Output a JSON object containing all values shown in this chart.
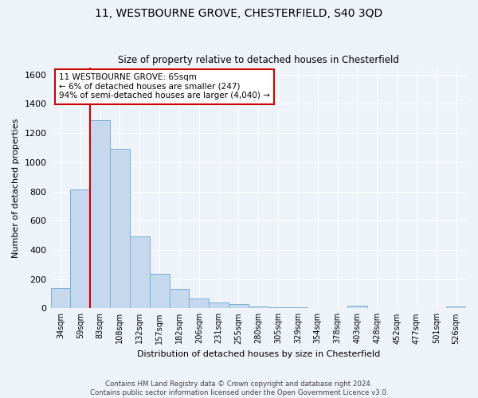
{
  "title1": "11, WESTBOURNE GROVE, CHESTERFIELD, S40 3QD",
  "title2": "Size of property relative to detached houses in Chesterfield",
  "xlabel": "Distribution of detached houses by size in Chesterfield",
  "ylabel": "Number of detached properties",
  "categories": [
    "34sqm",
    "59sqm",
    "83sqm",
    "108sqm",
    "132sqm",
    "157sqm",
    "182sqm",
    "206sqm",
    "231sqm",
    "255sqm",
    "280sqm",
    "305sqm",
    "329sqm",
    "354sqm",
    "378sqm",
    "403sqm",
    "428sqm",
    "452sqm",
    "477sqm",
    "501sqm",
    "526sqm"
  ],
  "values": [
    140,
    815,
    1290,
    1090,
    490,
    235,
    130,
    68,
    40,
    28,
    15,
    8,
    5,
    3,
    2,
    18,
    2,
    0,
    0,
    0,
    15
  ],
  "bar_color": "#c5d8ee",
  "bar_edge_color": "#7aadd4",
  "vline_x": 1.5,
  "vline_color": "#cc0000",
  "ylim": [
    0,
    1650
  ],
  "yticks": [
    0,
    200,
    400,
    600,
    800,
    1000,
    1200,
    1400,
    1600
  ],
  "annotation_line1": "11 WESTBOURNE GROVE: 65sqm",
  "annotation_line2": "← 6% of detached houses are smaller (247)",
  "annotation_line3": "94% of semi-detached houses are larger (4,040) →",
  "annotation_box_color": "#ffffff",
  "annotation_box_edge": "#cc0000",
  "footer1": "Contains HM Land Registry data © Crown copyright and database right 2024.",
  "footer2": "Contains public sector information licensed under the Open Government Licence v3.0.",
  "background_color": "#eef2f9",
  "grid_color": "#ffffff"
}
